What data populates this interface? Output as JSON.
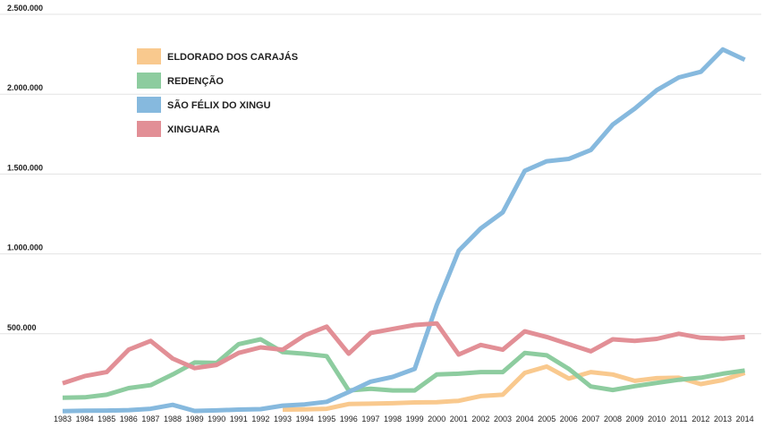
{
  "chart_data": {
    "type": "line",
    "x": [
      1983,
      1984,
      1985,
      1986,
      1987,
      1988,
      1989,
      1990,
      1991,
      1992,
      1993,
      1994,
      1995,
      1996,
      1997,
      1998,
      1999,
      2000,
      2001,
      2002,
      2003,
      2004,
      2005,
      2006,
      2007,
      2008,
      2009,
      2010,
      2011,
      2012,
      2013,
      2014
    ],
    "x_tick_labels": [
      "1983",
      "1984",
      "1985",
      "1986",
      "1987",
      "1988",
      "1989",
      "1990",
      "1991",
      "1992",
      "1993",
      "1994",
      "1995",
      "1996",
      "1997",
      "1998",
      "1999",
      "2000",
      "2001",
      "2002",
      "2003",
      "2004",
      "2005",
      "2006",
      "2007",
      "2008",
      "2009",
      "2010",
      "2011",
      "2012",
      "2013",
      "2014"
    ],
    "y_tick_labels": [
      "500.000",
      "1.000.000",
      "1.500.000",
      "2.000.000",
      "2.500.000"
    ],
    "y_ticks": [
      500000,
      1000000,
      1500000,
      2000000,
      2500000
    ],
    "ylim": [
      0,
      2500000
    ],
    "grid": true,
    "legend_position": "top-left",
    "series": [
      {
        "name": "ELDORADO DOS CARAJÁS",
        "color": "#f9c98e",
        "values": [
          null,
          null,
          null,
          null,
          null,
          null,
          null,
          null,
          null,
          null,
          25000,
          27000,
          30000,
          60000,
          62000,
          65000,
          70000,
          72000,
          80000,
          110000,
          118000,
          255000,
          295000,
          220000,
          260000,
          245000,
          205000,
          222000,
          225000,
          185000,
          210000,
          255000
        ]
      },
      {
        "name": "REDENÇÃO",
        "color": "#8dcc9f",
        "values": [
          100000,
          102000,
          118000,
          160000,
          178000,
          245000,
          320000,
          317000,
          435000,
          465000,
          385000,
          375000,
          360000,
          145000,
          155000,
          145000,
          145000,
          245000,
          250000,
          260000,
          260000,
          380000,
          365000,
          280000,
          170000,
          148000,
          172000,
          192000,
          212000,
          225000,
          250000,
          270000
        ]
      },
      {
        "name": "SÃO FÉLIX DO XINGU",
        "color": "#86b9de",
        "values": [
          15000,
          18000,
          19000,
          22000,
          30000,
          55000,
          17000,
          20000,
          25000,
          28000,
          50000,
          58000,
          74000,
          135000,
          200000,
          230000,
          280000,
          680000,
          1020000,
          1160000,
          1260000,
          1520000,
          1580000,
          1595000,
          1650000,
          1810000,
          1910000,
          2025000,
          2105000,
          2140000,
          2280000,
          2215000
        ]
      },
      {
        "name": "XINGUARA",
        "color": "#e28f96",
        "values": [
          190000,
          235000,
          260000,
          400000,
          455000,
          345000,
          285000,
          305000,
          380000,
          415000,
          400000,
          490000,
          545000,
          375000,
          505000,
          530000,
          555000,
          565000,
          370000,
          430000,
          400000,
          515000,
          480000,
          435000,
          390000,
          465000,
          455000,
          468000,
          500000,
          475000,
          470000,
          480000
        ]
      }
    ]
  }
}
